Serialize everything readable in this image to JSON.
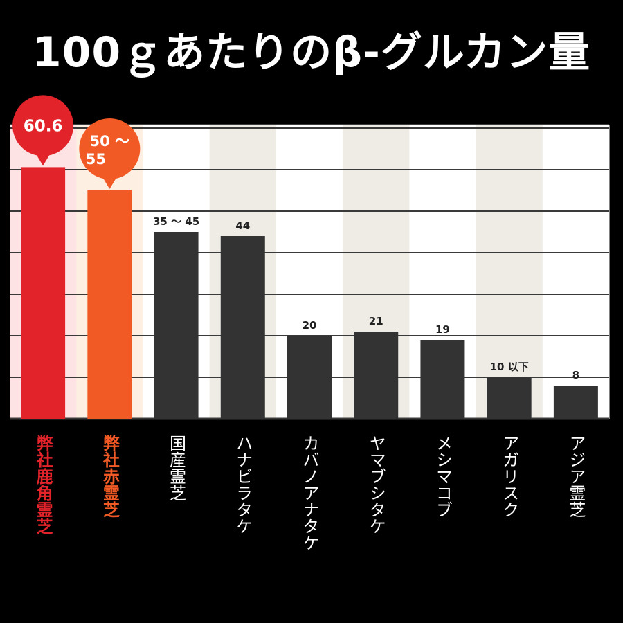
{
  "title": "100ｇあたりのβ-グルカン量",
  "chart_data": {
    "type": "bar",
    "title": "100ｇあたりのβ-グルカン量",
    "xlabel": "",
    "ylabel": "",
    "ylim": [
      0,
      70
    ],
    "grid": true,
    "categories": [
      "弊社鹿角霊芝",
      "弊社赤霊芝",
      "国産霊芝",
      "ハナビラタケ",
      "カバノアナタケ",
      "ヤマブシタケ",
      "メシマコブ",
      "アガリスク",
      "アジア霊芝"
    ],
    "values": [
      60.6,
      55,
      45,
      44,
      20,
      21,
      19,
      10,
      8
    ],
    "value_labels": [
      "60.6",
      "50 〜 55",
      "35 〜 45",
      "44",
      "20",
      "21",
      "19",
      "10 以下",
      "8"
    ],
    "highlight_callouts": [
      0,
      1
    ],
    "bar_colors": [
      "#e3232a",
      "#f15a24",
      "#333333",
      "#333333",
      "#333333",
      "#333333",
      "#333333",
      "#333333",
      "#333333"
    ],
    "label_colors": [
      "#e3232a",
      "#f15a24",
      "#ffffff",
      "#ffffff",
      "#ffffff",
      "#ffffff",
      "#ffffff",
      "#ffffff",
      "#ffffff"
    ],
    "column_bg_colors": [
      "#fde3e3",
      "#feefe3",
      "#ffffff",
      "#efece6",
      "#ffffff",
      "#efece6",
      "#ffffff",
      "#efece6",
      "#ffffff"
    ]
  }
}
